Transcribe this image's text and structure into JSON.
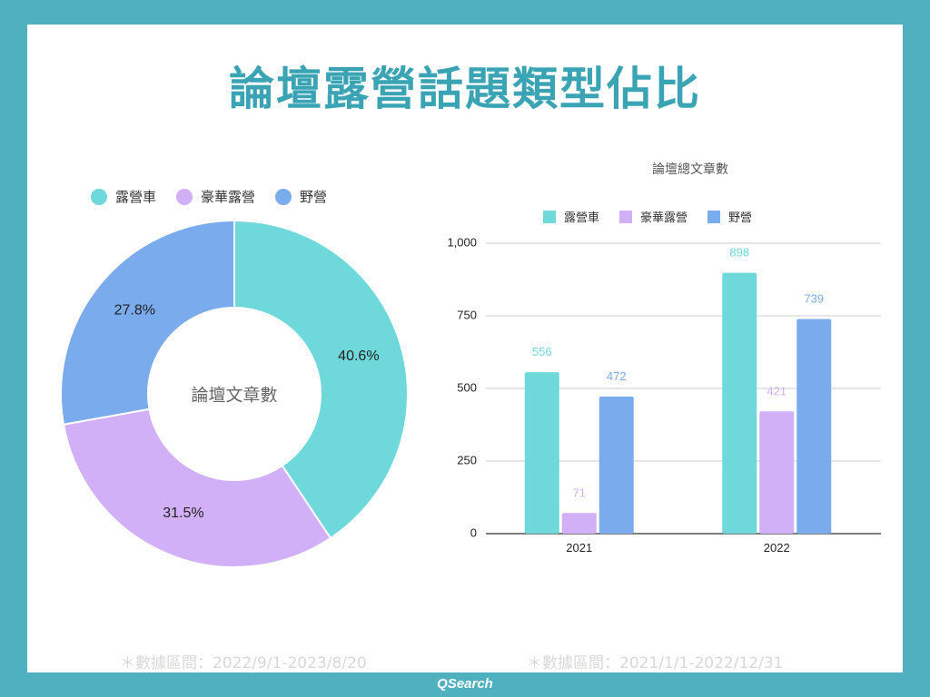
{
  "title": "論壇露營話題類型佔比",
  "brand": "QSearch",
  "colors": {
    "camper_car": "#6fd8da",
    "glamping": "#d2b0f7",
    "wild_camping": "#7aabed"
  },
  "chart_data": [
    {
      "type": "pie",
      "donut": true,
      "center_label": "論壇文章數",
      "legend_position": "top",
      "legend": [
        "露營車",
        "豪華露營",
        "野營"
      ],
      "slices": [
        {
          "name": "露營車",
          "value": 40.6,
          "label": "40.6%"
        },
        {
          "name": "豪華露營",
          "value": 31.5,
          "label": "31.5%"
        },
        {
          "name": "野營",
          "value": 27.8,
          "label": "27.8%"
        }
      ],
      "footnote": "＊數據區間：2022/9/1-2023/8/20"
    },
    {
      "type": "bar",
      "title": "論壇總文章數",
      "legend_position": "top",
      "legend": [
        "露營車",
        "豪華露營",
        "野營"
      ],
      "categories": [
        "2021",
        "2022"
      ],
      "series": [
        {
          "name": "露營車",
          "values": [
            556,
            898
          ]
        },
        {
          "name": "豪華露營",
          "values": [
            71,
            421
          ]
        },
        {
          "name": "野營",
          "values": [
            472,
            739
          ]
        }
      ],
      "ylim": [
        0,
        1000
      ],
      "yticks": [
        "0",
        "250",
        "500",
        "750",
        "1,000"
      ],
      "grid": true,
      "footnote": "＊數據區間：2021/1/1-2022/12/31"
    }
  ]
}
